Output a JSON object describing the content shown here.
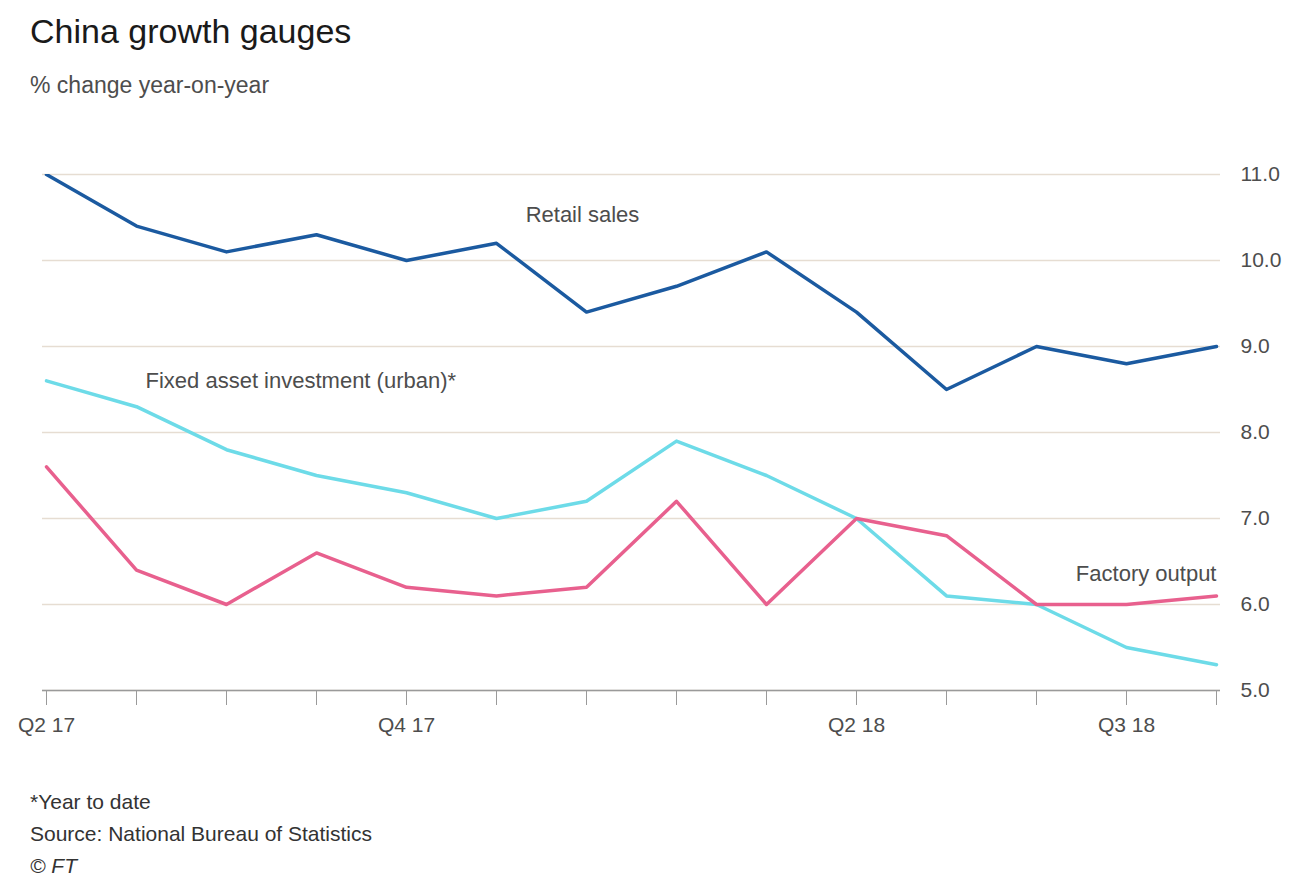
{
  "chart_data": {
    "type": "line",
    "title": "China growth gauges",
    "subtitle": "% change year-on-year",
    "footnote": "*Year to date",
    "source": "Source: National Bureau of Statistics",
    "credit": "© FT",
    "categories": [
      "Q2 17",
      null,
      null,
      null,
      "Q4 17",
      null,
      null,
      null,
      null,
      "Q2 18",
      null,
      null,
      "Q3 18",
      null
    ],
    "series": [
      {
        "name": "Retail sales",
        "color": "#1b5aa0",
        "values": [
          11.0,
          10.4,
          10.1,
          10.3,
          10.0,
          10.2,
          9.4,
          9.7,
          10.1,
          9.4,
          8.5,
          9.0,
          8.8,
          9.0
        ]
      },
      {
        "name": "Fixed asset investment (urban)*",
        "color": "#6ddbe8",
        "values": [
          8.6,
          8.3,
          7.8,
          7.5,
          7.3,
          7.0,
          7.2,
          7.9,
          7.5,
          7.0,
          6.1,
          6.0,
          5.5,
          5.3
        ]
      },
      {
        "name": "Factory output",
        "color": "#e8608e",
        "values": [
          7.6,
          6.4,
          6.0,
          6.6,
          6.2,
          6.1,
          6.2,
          7.2,
          6.0,
          7.0,
          6.8,
          6.0,
          6.0,
          6.1
        ]
      }
    ],
    "ylim": [
      5,
      11
    ],
    "yticks": [
      5,
      6,
      7,
      8,
      9,
      10,
      11
    ],
    "grid": true
  }
}
